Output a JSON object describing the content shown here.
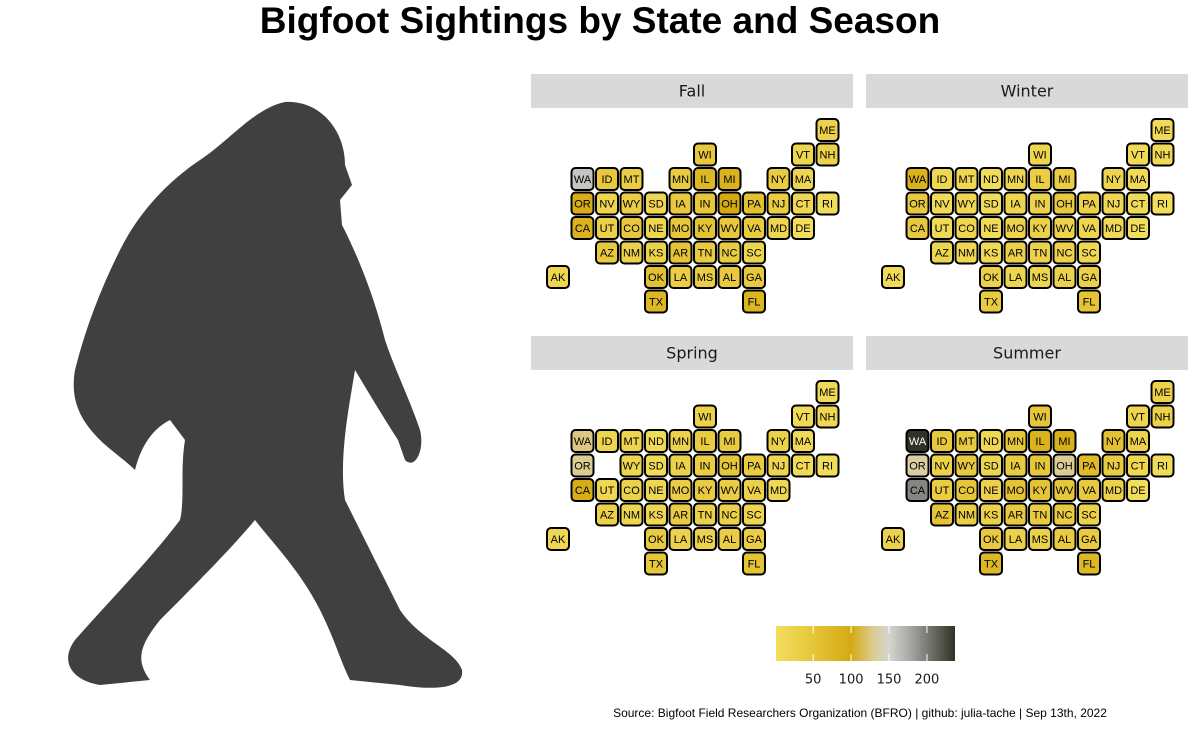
{
  "chart_data": {
    "type": "tilemap",
    "title": "Bigfoot Sightings by State and Season",
    "caption": "Source: Bigfoot Field Researchers Organization (BFRO) | github: julia-tache | Sep 13th, 2022",
    "categories": [
      [
        null,
        null,
        null,
        null,
        null,
        null,
        null,
        null,
        null,
        null,
        null,
        "ME"
      ],
      [
        null,
        null,
        null,
        null,
        null,
        null,
        "WI",
        null,
        null,
        null,
        "VT",
        "NH"
      ],
      [
        null,
        "WA",
        "ID",
        "MT",
        "ND",
        "MN",
        "IL",
        "MI",
        null,
        "NY",
        "MA",
        null
      ],
      [
        null,
        "OR",
        "NV",
        "WY",
        "SD",
        "IA",
        "IN",
        "OH",
        "PA",
        "NJ",
        "CT",
        "RI"
      ],
      [
        null,
        "CA",
        "UT",
        "CO",
        "NE",
        "MO",
        "KY",
        "WV",
        "VA",
        "MD",
        "DE",
        null
      ],
      [
        null,
        null,
        "AZ",
        "NM",
        "KS",
        "AR",
        "TN",
        "NC",
        "SC",
        null,
        null,
        null
      ],
      [
        "AK",
        null,
        null,
        null,
        "OK",
        "LA",
        "MS",
        "AL",
        "GA",
        null,
        null,
        null
      ],
      [
        null,
        null,
        null,
        null,
        "TX",
        null,
        null,
        null,
        "FL",
        null,
        null,
        null
      ]
    ],
    "facets": [
      {
        "title": "Fall",
        "values": [
          [
            null,
            null,
            null,
            null,
            null,
            null,
            null,
            null,
            null,
            null,
            null,
            25
          ],
          [
            null,
            null,
            null,
            null,
            null,
            null,
            45,
            null,
            null,
            null,
            20,
            25
          ],
          [
            null,
            160,
            45,
            35,
            null,
            40,
            75,
            85,
            null,
            40,
            20,
            null
          ],
          [
            null,
            95,
            20,
            35,
            15,
            45,
            50,
            100,
            60,
            35,
            15,
            5
          ],
          [
            null,
            85,
            30,
            45,
            20,
            50,
            55,
            45,
            40,
            20,
            3,
            null
          ],
          [
            null,
            null,
            45,
            30,
            25,
            55,
            40,
            40,
            20,
            null,
            null,
            null
          ],
          [
            20,
            null,
            null,
            null,
            60,
            35,
            35,
            45,
            45,
            null,
            null,
            null
          ],
          [
            null,
            null,
            null,
            null,
            75,
            null,
            null,
            null,
            80,
            null,
            null,
            null
          ]
        ]
      },
      {
        "title": "Winter",
        "values": [
          [
            null,
            null,
            null,
            null,
            null,
            null,
            null,
            null,
            null,
            null,
            null,
            10
          ],
          [
            null,
            null,
            null,
            null,
            null,
            null,
            20,
            null,
            null,
            null,
            10,
            12
          ],
          [
            null,
            85,
            15,
            15,
            5,
            20,
            35,
            35,
            null,
            20,
            10,
            null
          ],
          [
            null,
            45,
            10,
            15,
            8,
            20,
            25,
            45,
            30,
            15,
            8,
            3
          ],
          [
            null,
            45,
            12,
            20,
            10,
            25,
            30,
            25,
            20,
            12,
            2,
            null
          ],
          [
            null,
            null,
            20,
            15,
            12,
            30,
            25,
            25,
            15,
            null,
            null,
            null
          ],
          [
            8,
            null,
            null,
            null,
            30,
            20,
            20,
            25,
            30,
            null,
            null,
            null
          ],
          [
            null,
            null,
            null,
            null,
            40,
            null,
            null,
            null,
            55,
            null,
            null,
            null
          ]
        ]
      },
      {
        "title": "Spring",
        "values": [
          [
            null,
            null,
            null,
            null,
            null,
            null,
            null,
            null,
            null,
            null,
            null,
            12
          ],
          [
            null,
            null,
            null,
            null,
            null,
            null,
            25,
            null,
            null,
            null,
            10,
            15
          ],
          [
            null,
            125,
            20,
            20,
            8,
            25,
            40,
            40,
            null,
            30,
            12,
            null
          ],
          [
            null,
            130,
            null,
            20,
            10,
            25,
            35,
            50,
            40,
            20,
            10,
            4
          ],
          [
            null,
            95,
            15,
            25,
            15,
            35,
            40,
            35,
            30,
            15,
            null,
            null
          ],
          [
            null,
            null,
            30,
            20,
            15,
            40,
            30,
            30,
            20,
            null,
            null,
            null
          ],
          [
            15,
            null,
            null,
            null,
            40,
            25,
            25,
            35,
            35,
            null,
            null,
            null
          ],
          [
            null,
            null,
            null,
            null,
            50,
            null,
            null,
            null,
            55,
            null,
            null,
            null
          ]
        ]
      },
      {
        "title": "Summer",
        "values": [
          [
            null,
            null,
            null,
            null,
            null,
            null,
            null,
            null,
            null,
            null,
            null,
            25
          ],
          [
            null,
            null,
            null,
            null,
            null,
            null,
            50,
            null,
            null,
            null,
            20,
            25
          ],
          [
            null,
            237,
            45,
            40,
            15,
            50,
            85,
            90,
            null,
            60,
            25,
            null
          ],
          [
            null,
            135,
            25,
            45,
            20,
            40,
            50,
            130,
            70,
            40,
            15,
            6
          ],
          [
            null,
            195,
            35,
            50,
            25,
            55,
            55,
            50,
            45,
            25,
            5,
            null
          ],
          [
            null,
            null,
            55,
            35,
            30,
            45,
            40,
            40,
            25,
            null,
            null,
            null
          ],
          [
            25,
            null,
            null,
            null,
            45,
            30,
            30,
            40,
            40,
            null,
            null,
            null
          ],
          [
            null,
            null,
            null,
            null,
            75,
            null,
            null,
            null,
            75,
            null,
            null,
            null
          ]
        ]
      }
    ],
    "colorscale": [
      {
        "value": 1,
        "color": "#f2de5e"
      },
      {
        "value": 50,
        "color": "#e6c63a"
      },
      {
        "value": 100,
        "color": "#d4aa12"
      },
      {
        "value": 128,
        "color": "#dccb8e"
      },
      {
        "value": 150,
        "color": "#d6d5d0"
      },
      {
        "value": 180,
        "color": "#a3a3a0"
      },
      {
        "value": 237,
        "color": "#2e3325"
      }
    ],
    "legend_ticks": [
      50,
      100,
      150,
      200
    ]
  }
}
